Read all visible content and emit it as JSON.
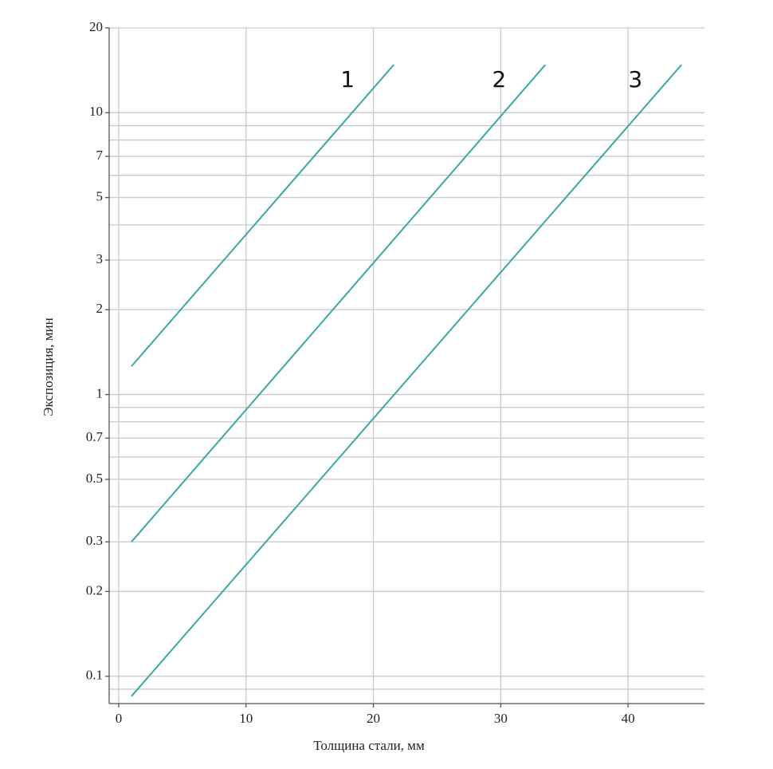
{
  "chart_data": {
    "type": "line",
    "x_label": "Толщина стали, мм",
    "y_label": "Экспозиция, мин",
    "y_log": true,
    "grid": true,
    "xlim": [
      -0.75,
      46
    ],
    "ylim": [
      0.08,
      20
    ],
    "xticks": [
      0,
      10,
      20,
      30,
      40
    ],
    "yticks": [
      0.1,
      0.2,
      0.3,
      0.5,
      0.7,
      1,
      2,
      3,
      5,
      7,
      10,
      20
    ],
    "minor_yticks": [
      0.09,
      0.4,
      0.6,
      0.8,
      0.9,
      4,
      6,
      8,
      9
    ],
    "series": [
      {
        "name": "1",
        "color": "#3aa8a8",
        "x": [
          1,
          21.6
        ],
        "values": [
          1.26,
          14.8
        ]
      },
      {
        "name": "2",
        "color": "#3aa8a8",
        "x": [
          1,
          33.5
        ],
        "values": [
          0.3,
          14.8
        ]
      },
      {
        "name": "3",
        "color": "#3aa8a8",
        "x": [
          1,
          44.2
        ],
        "values": [
          0.085,
          14.8
        ]
      }
    ]
  }
}
